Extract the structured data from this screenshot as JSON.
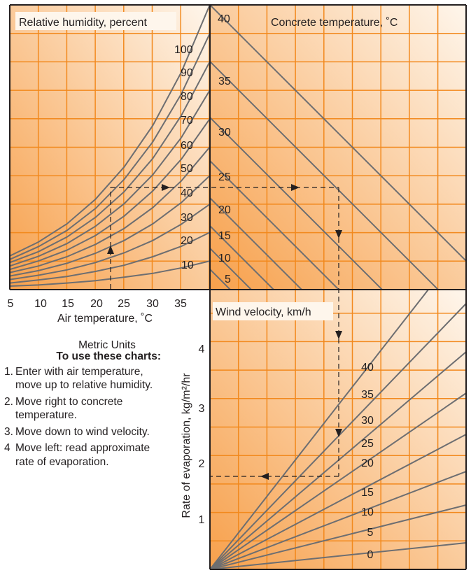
{
  "colors": {
    "gradient_light": "#fef6ec",
    "gradient_dark": "#f7a04b",
    "grid": "#f2891d",
    "curve": "#6d6e71",
    "frame": "#231f20"
  },
  "chart_data": [
    {
      "type": "line",
      "title": "Relative humidity, percent",
      "xlabel": "Air temperature, ˚C",
      "x_ticks": [
        "5",
        "10",
        "15",
        "20",
        "25",
        "30",
        "35"
      ],
      "xlim": [
        5,
        40
      ],
      "curve_labels": [
        "100",
        "90",
        "80",
        "70",
        "60",
        "50",
        "40",
        "30",
        "20",
        "10"
      ],
      "series": [
        {
          "name": "10",
          "points": [
            [
              5,
              0.9
            ],
            [
              10,
              1.2
            ],
            [
              15,
              1.7
            ],
            [
              20,
              2.3
            ],
            [
              25,
              3.2
            ],
            [
              30,
              4.2
            ],
            [
              35,
              5.6
            ],
            [
              40,
              7.4
            ]
          ]
        },
        {
          "name": "20",
          "points": [
            [
              5,
              1.7
            ],
            [
              10,
              2.5
            ],
            [
              15,
              3.4
            ],
            [
              20,
              4.7
            ],
            [
              25,
              6.3
            ],
            [
              30,
              8.5
            ],
            [
              35,
              11.2
            ],
            [
              40,
              14.8
            ]
          ]
        },
        {
          "name": "30",
          "points": [
            [
              5,
              2.6
            ],
            [
              10,
              3.7
            ],
            [
              15,
              5.1
            ],
            [
              20,
              7.0
            ],
            [
              25,
              9.5
            ],
            [
              30,
              12.7
            ],
            [
              35,
              16.9
            ],
            [
              40,
              22.1
            ]
          ]
        },
        {
          "name": "40",
          "points": [
            [
              5,
              3.5
            ],
            [
              10,
              4.9
            ],
            [
              15,
              6.8
            ],
            [
              20,
              9.4
            ],
            [
              25,
              12.7
            ],
            [
              30,
              17.0
            ],
            [
              35,
              22.5
            ],
            [
              40,
              29.5
            ]
          ]
        },
        {
          "name": "50",
          "points": [
            [
              5,
              4.4
            ],
            [
              10,
              6.1
            ],
            [
              15,
              8.5
            ],
            [
              20,
              11.7
            ],
            [
              25,
              15.8
            ],
            [
              30,
              21.2
            ],
            [
              35,
              28.1
            ],
            [
              40,
              36.9
            ]
          ]
        },
        {
          "name": "60",
          "points": [
            [
              5,
              5.2
            ],
            [
              10,
              7.4
            ],
            [
              15,
              10.2
            ],
            [
              20,
              14.0
            ],
            [
              25,
              19.0
            ],
            [
              30,
              25.5
            ],
            [
              35,
              33.7
            ],
            [
              40,
              44.2
            ]
          ]
        },
        {
          "name": "70",
          "points": [
            [
              5,
              6.1
            ],
            [
              10,
              8.6
            ],
            [
              15,
              11.9
            ],
            [
              20,
              16.4
            ],
            [
              25,
              22.2
            ],
            [
              30,
              29.7
            ],
            [
              35,
              39.3
            ],
            [
              40,
              51.6
            ]
          ]
        },
        {
          "name": "80",
          "points": [
            [
              5,
              7.0
            ],
            [
              10,
              9.8
            ],
            [
              15,
              13.6
            ],
            [
              20,
              18.7
            ],
            [
              25,
              25.3
            ],
            [
              30,
              33.9
            ],
            [
              35,
              45.0
            ],
            [
              40,
              59.0
            ]
          ]
        },
        {
          "name": "90",
          "points": [
            [
              5,
              7.8
            ],
            [
              10,
              11.1
            ],
            [
              15,
              15.3
            ],
            [
              20,
              21.0
            ],
            [
              25,
              28.5
            ],
            [
              30,
              38.2
            ],
            [
              35,
              50.6
            ],
            [
              40,
              66.3
            ]
          ]
        },
        {
          "name": "100",
          "points": [
            [
              5,
              8.7
            ],
            [
              10,
              12.3
            ],
            [
              15,
              17.0
            ],
            [
              20,
              23.4
            ],
            [
              25,
              31.7
            ],
            [
              30,
              42.4
            ],
            [
              35,
              56.2
            ],
            [
              40,
              73.7
            ]
          ]
        }
      ]
    },
    {
      "type": "line",
      "title": "Concrete temperature, ˚C",
      "curve_labels": [
        "40",
        "35",
        "30",
        "25",
        "20",
        "15",
        "10",
        "5"
      ]
    },
    {
      "type": "line",
      "title": "Wind velocity, km/h",
      "ylabel": "Rate of evaporation, kg/m²/hr",
      "y_ticks": [
        "1",
        "2",
        "3",
        "4"
      ],
      "ylim": [
        0,
        4.8
      ],
      "curve_labels": [
        "40",
        "35",
        "30",
        "25",
        "20",
        "15",
        "10",
        "5",
        "0"
      ]
    }
  ],
  "units_caption": "Metric Units",
  "instructions": {
    "title": "To use these charts:",
    "steps": [
      {
        "num": "1.",
        "text": "Enter with air temperature, move up to relative humidity."
      },
      {
        "num": "2.",
        "text": "Move right to concrete temperature."
      },
      {
        "num": "3.",
        "text": "Move down to wind velocity."
      },
      {
        "num": "4",
        "text": "Move left: read approximate rate of evaporation."
      }
    ]
  }
}
